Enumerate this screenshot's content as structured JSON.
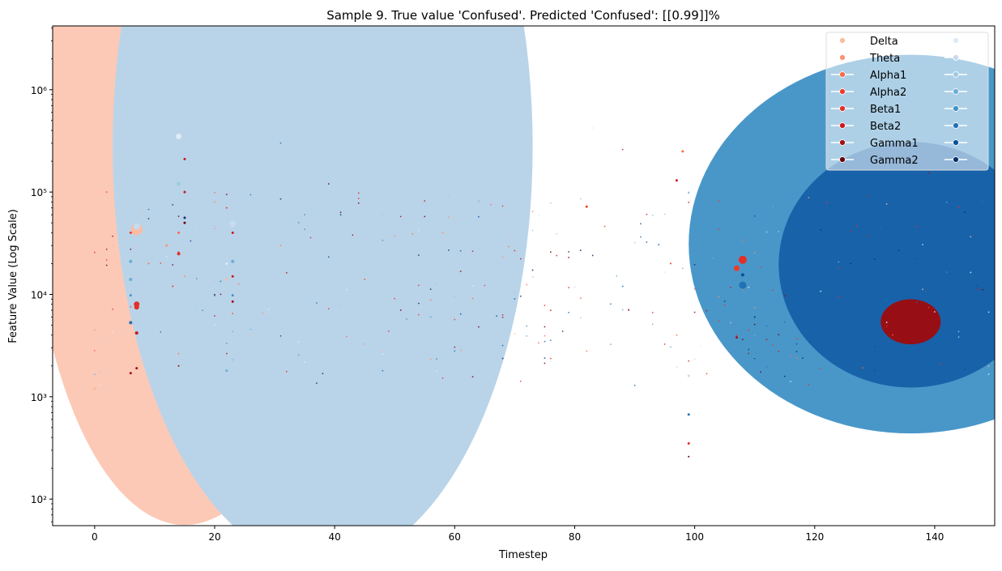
{
  "chart_data": {
    "type": "scatter",
    "title": "Sample 9. True value 'Confused'. Predicted 'Confused': [[0.99]]%",
    "xlabel": "Timestep",
    "ylabel": "Feature Value (Log Scale)",
    "xlim": [
      -7,
      150
    ],
    "ylim": [
      55,
      4200000
    ],
    "yscale": "log",
    "grid": false,
    "legend_position": "top-right",
    "x_ticks": [
      0,
      20,
      40,
      60,
      80,
      100,
      120,
      140
    ],
    "y_ticks": [
      {
        "value": 100,
        "label": "10²"
      },
      {
        "value": 1000,
        "label": "10³"
      },
      {
        "value": 10000,
        "label": "10⁴"
      },
      {
        "value": 100000,
        "label": "10⁵"
      },
      {
        "value": 1000000,
        "label": "10⁶"
      }
    ],
    "legend": {
      "left_entries": [
        {
          "label": "Delta",
          "color": "#fcbba1"
        },
        {
          "label": "Theta",
          "color": "#fc9272"
        },
        {
          "label": "Alpha1",
          "color": "#fb6a4a"
        },
        {
          "label": "Alpha2",
          "color": "#ef3b2c"
        },
        {
          "label": "Beta1",
          "color": "#e32f27"
        },
        {
          "label": "Beta2",
          "color": "#cb181d"
        },
        {
          "label": "Gamma1",
          "color": "#a50f15"
        },
        {
          "label": "Gamma2",
          "color": "#67000d"
        }
      ],
      "right_entries": [
        {
          "label": "",
          "color": "#deebf7"
        },
        {
          "label": "",
          "color": "#c6dbef"
        },
        {
          "label": "",
          "color": "#9ecae1"
        },
        {
          "label": "",
          "color": "#6baed6"
        },
        {
          "label": "",
          "color": "#4292c6"
        },
        {
          "label": "",
          "color": "#2171b5"
        },
        {
          "label": "",
          "color": "#08519c"
        },
        {
          "label": "",
          "color": "#08306b"
        }
      ]
    },
    "large_markers": [
      {
        "x": 15,
        "y": 280000,
        "rx": 26,
        "ry": 3.7,
        "color": "#fcc9b6"
      },
      {
        "x": 38,
        "y": 280000,
        "rx": 35,
        "ry": 4.1,
        "color": "#b9d4e9"
      },
      {
        "x": 136,
        "y": 31000,
        "rx": 37,
        "ry": 1.85,
        "color": "#4997c9"
      },
      {
        "x": 136,
        "y": 19500,
        "rx": 22,
        "ry": 1.2,
        "color": "#1862aa"
      },
      {
        "x": 136,
        "y": 5400,
        "rx": 5,
        "ry": 0.22,
        "color": "#970f14"
      }
    ],
    "series": [
      {
        "name": "Delta",
        "color": "#fcbba1",
        "points": [
          [
            0,
            1200,
            2
          ],
          [
            0,
            4500,
            1.5
          ],
          [
            3,
            30000,
            1
          ],
          [
            7,
            43000,
            7
          ],
          [
            22,
            14000,
            1.5
          ],
          [
            26,
            4000,
            1
          ]
        ]
      },
      {
        "name": "Theta",
        "color": "#fc9272",
        "points": [
          [
            12,
            30000,
            1.5
          ],
          [
            15,
            15000,
            1
          ],
          [
            20,
            80000,
            1
          ],
          [
            31,
            30000,
            1
          ],
          [
            58,
            40000,
            1
          ],
          [
            97,
            4000,
            1
          ]
        ]
      },
      {
        "name": "Alpha1",
        "color": "#fb6a4a",
        "points": [
          [
            2,
            100000,
            1
          ],
          [
            9,
            20000,
            1
          ],
          [
            14,
            40000,
            1.5
          ],
          [
            23,
            6500,
            1
          ],
          [
            45,
            14000,
            1
          ],
          [
            98,
            250000,
            1.5
          ]
        ]
      },
      {
        "name": "Alpha2",
        "color": "#ef3b2c",
        "points": [
          [
            6,
            40000,
            1.5
          ],
          [
            13,
            12000,
            1
          ],
          [
            22,
            70000,
            1
          ],
          [
            82,
            72000,
            1.5
          ],
          [
            96,
            20000,
            1
          ],
          [
            107,
            18000,
            3.5
          ]
        ]
      },
      {
        "name": "Beta1",
        "color": "#e32f27",
        "points": [
          [
            7,
            8000,
            3.5
          ],
          [
            7,
            7500,
            3
          ],
          [
            14,
            25000,
            2
          ],
          [
            108,
            21800,
            5
          ],
          [
            99,
            350,
            1.5
          ]
        ]
      },
      {
        "name": "Beta2",
        "color": "#cb181d",
        "points": [
          [
            7,
            4200,
            2
          ],
          [
            15,
            210000,
            1.5
          ],
          [
            15,
            100000,
            1.5
          ],
          [
            23,
            40000,
            1.5
          ],
          [
            23,
            15000,
            1.5
          ],
          [
            97,
            130000,
            1.5
          ]
        ]
      },
      {
        "name": "Gamma1",
        "color": "#a50f15",
        "points": [
          [
            6,
            1700,
            1.5
          ],
          [
            7,
            1900,
            1.5
          ],
          [
            14,
            2000,
            1
          ],
          [
            23,
            8500,
            1.5
          ],
          [
            107,
            3800,
            1.5
          ]
        ]
      },
      {
        "name": "Gamma2",
        "color": "#67000d",
        "points": [
          [
            15,
            50000,
            1.5
          ],
          [
            99,
            260,
            1
          ]
        ]
      },
      {
        "name": "",
        "color": "#deebf7",
        "points": [
          [
            14,
            350000,
            3.5
          ],
          [
            22,
            20000,
            1.5
          ]
        ]
      },
      {
        "name": "",
        "color": "#c6dbef",
        "points": [
          [
            7,
            46000,
            4
          ],
          [
            23,
            49000,
            4
          ],
          [
            99,
            1600,
            1.5
          ]
        ]
      },
      {
        "name": "",
        "color": "#9ecae1",
        "points": [
          [
            14,
            120000,
            2.5
          ],
          [
            23,
            2300,
            1.5
          ],
          [
            60,
            9500,
            1
          ]
        ]
      },
      {
        "name": "",
        "color": "#6baed6",
        "points": [
          [
            6,
            21000,
            2
          ],
          [
            6,
            14000,
            2
          ],
          [
            22,
            1800,
            1.5
          ],
          [
            23,
            21000,
            2
          ],
          [
            56,
            6000,
            1
          ]
        ]
      },
      {
        "name": "",
        "color": "#4292c6",
        "points": [
          [
            6,
            9800,
            1.5
          ],
          [
            23,
            9800,
            1.5
          ],
          [
            60,
            2800,
            1
          ],
          [
            88,
            12000,
            1
          ]
        ]
      },
      {
        "name": "",
        "color": "#2171b5",
        "points": [
          [
            6,
            5300,
            2
          ],
          [
            99,
            670,
            1.5
          ],
          [
            108,
            12300,
            4.5
          ]
        ]
      },
      {
        "name": "",
        "color": "#08519c",
        "points": [
          [
            108,
            15500,
            2
          ],
          [
            130,
            1800,
            1
          ]
        ]
      },
      {
        "name": "",
        "color": "#08306b",
        "points": [
          [
            15,
            56000,
            1.5
          ],
          [
            110,
            6000,
            1
          ]
        ]
      }
    ]
  }
}
